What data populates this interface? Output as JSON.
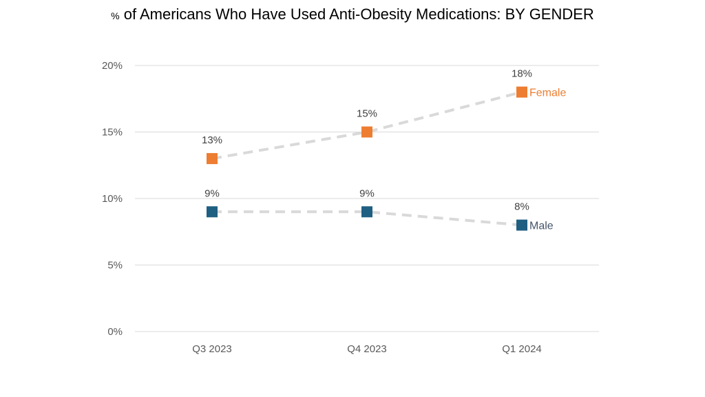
{
  "chart_data": {
    "type": "line",
    "title_prefix": "%",
    "title": "of Americans Who Have Used Anti-Obesity Medications: BY GENDER",
    "categories": [
      "Q3 2023",
      "Q4 2023",
      "Q1 2024"
    ],
    "ylim": [
      0,
      20
    ],
    "yticks": [
      0,
      5,
      10,
      15,
      20
    ],
    "ytick_labels": [
      "0%",
      "5%",
      "10%",
      "15%",
      "20%"
    ],
    "grid": true,
    "series": [
      {
        "name": "Female",
        "values": [
          13,
          15,
          18
        ],
        "labels": [
          "13%",
          "15%",
          "18%"
        ],
        "marker_color": "#ED7D31",
        "label_color": "#ED7D31",
        "line_color": "#D9D9D9",
        "line_style": "dashed"
      },
      {
        "name": "Male",
        "values": [
          9,
          9,
          8
        ],
        "labels": [
          "9%",
          "9%",
          "8%"
        ],
        "marker_color": "#1F5F82",
        "label_color": "#44546A",
        "line_color": "#D9D9D9",
        "line_style": "dashed"
      }
    ]
  }
}
